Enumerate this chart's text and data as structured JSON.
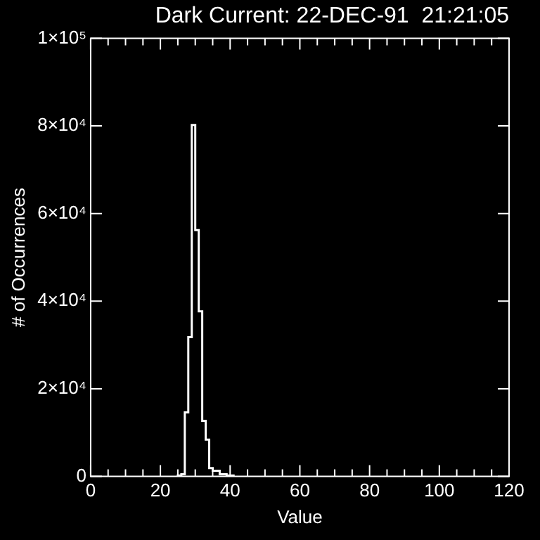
{
  "chart_data": {
    "type": "histogram",
    "title": "Dark Current: 22-DEC-91  21:21:05",
    "xlabel": "Value",
    "ylabel": "# of Occurrences",
    "bins": [
      25,
      26,
      27,
      28,
      29,
      30,
      31,
      32,
      33,
      34,
      35,
      36,
      37,
      38,
      39,
      40,
      41
    ],
    "values": [
      200,
      500,
      14600,
      31800,
      80200,
      56200,
      37700,
      12700,
      8400,
      1900,
      1300,
      1300,
      500,
      500,
      200,
      200
    ],
    "color": "#ffffff",
    "xlim": [
      0,
      120
    ],
    "xticks": [
      0,
      {
        "value": 5,
        "label": null
      },
      {
        "value": 10,
        "label": null
      },
      {
        "value": 15,
        "label": null
      },
      20,
      {
        "value": 25,
        "label": null
      },
      {
        "value": 30,
        "label": null
      },
      {
        "value": 35,
        "label": null
      },
      40,
      {
        "value": 45,
        "label": null
      },
      {
        "value": 50,
        "label": null
      },
      {
        "value": 55,
        "label": null
      },
      60,
      {
        "value": 65,
        "label": null
      },
      {
        "value": 70,
        "label": null
      },
      {
        "value": 75,
        "label": null
      },
      80,
      {
        "value": 85,
        "label": null
      },
      {
        "value": 90,
        "label": null
      },
      {
        "value": 95,
        "label": null
      },
      100,
      {
        "value": 105,
        "label": null
      },
      {
        "value": 110,
        "label": null
      },
      {
        "value": 115,
        "label": null
      },
      120
    ],
    "ylim": [
      0,
      100000
    ],
    "yticks": [
      0,
      {
        "value": 20000,
        "label": "2×10⁴"
      },
      {
        "value": 40000,
        "label": "4×10⁴"
      },
      {
        "value": 60000,
        "label": "6×10⁴"
      },
      {
        "value": 80000,
        "label": "8×10⁴"
      },
      {
        "value": 100000,
        "label": "1×10⁵"
      }
    ],
    "grid": false,
    "legend": false
  }
}
